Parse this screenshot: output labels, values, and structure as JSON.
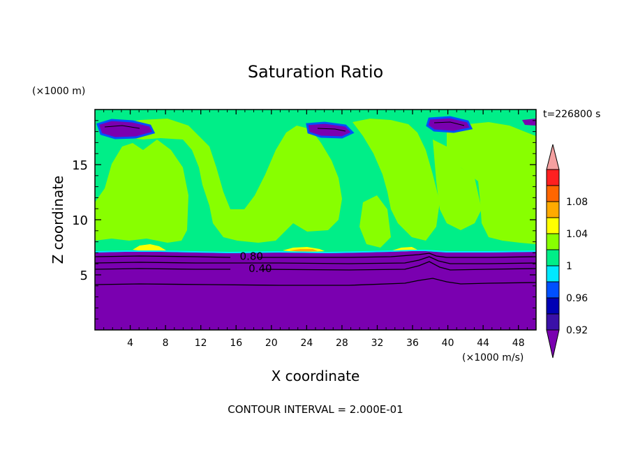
{
  "chart_data": {
    "type": "heatmap",
    "title": "Saturation Ratio",
    "xlabel": "X coordinate",
    "ylabel": "Z coordinate",
    "x_unit": "(×1000 m/s)",
    "y_unit": "(×1000 m)",
    "time_label": "t=226800 s",
    "footer": "CONTOUR INTERVAL = 2.000E-01",
    "xlim": [
      0,
      50
    ],
    "ylim": [
      0,
      20
    ],
    "x_ticks": [
      4,
      8,
      12,
      16,
      20,
      24,
      28,
      32,
      36,
      40,
      44,
      48
    ],
    "y_ticks": [
      5,
      10,
      15
    ],
    "colorbar": {
      "levels": [
        0.92,
        0.96,
        1,
        1.04,
        1.08
      ],
      "tick_labels": [
        "0.92",
        "0.96",
        "1",
        "1.04",
        "1.08"
      ],
      "bands": [
        {
          "range": [
            0.0,
            0.9
          ],
          "color": "#7a00b0"
        },
        {
          "range": [
            0.9,
            0.92
          ],
          "color": "#3a10a8"
        },
        {
          "range": [
            0.92,
            0.94
          ],
          "color": "#0000b4"
        },
        {
          "range": [
            0.94,
            0.96
          ],
          "color": "#0050ff"
        },
        {
          "range": [
            0.96,
            0.98
          ],
          "color": "#00e8ff"
        },
        {
          "range": [
            0.98,
            1.0
          ],
          "color": "#00ee88"
        },
        {
          "range": [
            1.0,
            1.02
          ],
          "color": "#88ff00"
        },
        {
          "range": [
            1.02,
            1.04
          ],
          "color": "#ffff00"
        },
        {
          "range": [
            1.04,
            1.06
          ],
          "color": "#ffaa00"
        },
        {
          "range": [
            1.06,
            1.08
          ],
          "color": "#ff6600"
        },
        {
          "range": [
            1.08,
            1.1
          ],
          "color": "#ff2020"
        },
        {
          "range": [
            1.1,
            1.2
          ],
          "color": "#f4a0a0"
        }
      ]
    },
    "contour_labels": [
      {
        "text": "0.80",
        "x": 16.0,
        "y": 6.6
      },
      {
        "text": "0.40",
        "x": 17.0,
        "y": 5.5
      }
    ],
    "regions": [
      {
        "z_range": [
          0,
          7.0
        ],
        "value": "< 0.90",
        "color": "#7a00b0"
      },
      {
        "z_range": [
          7.0,
          19.8
        ],
        "value": "0.98 - 1.02",
        "colors": [
          "#00ee88",
          "#88ff00"
        ]
      },
      {
        "z_range": [
          17.5,
          19.0
        ],
        "value": "< 0.92",
        "color": "#7a00b0"
      }
    ]
  },
  "colors": {
    "deep_purple": "#7a00b0",
    "green": "#00ee88",
    "lime": "#88ff00"
  }
}
